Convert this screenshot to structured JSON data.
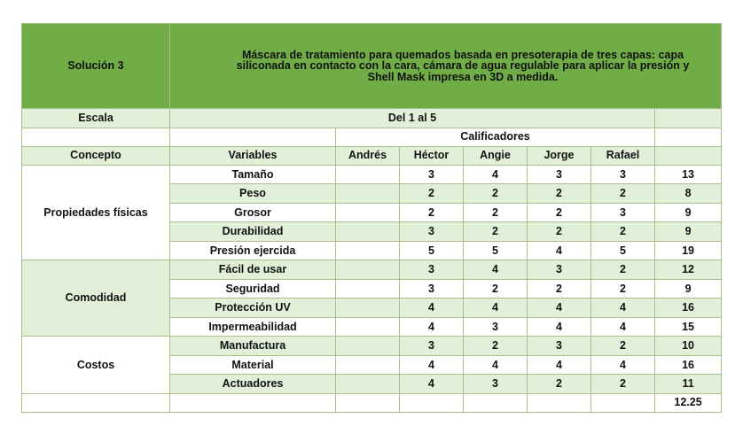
{
  "solution_label": "Solución 3",
  "title": "Máscara de tratamiento para quemados basada en presoterapia de tres capas: capa siliconada en contacto con la cara, cámara de agua regulable para aplicar la presión y Shell Mask impresa en 3D a medida.",
  "scale_label": "Escala",
  "scale_value": "Del 1 al 5",
  "graders_label": "Calificadores",
  "headers": {
    "concepto": "Concepto",
    "variables": "Variables",
    "graders": [
      "Andrés",
      "Héctor",
      "Angie",
      "Jorge",
      "Rafael"
    ]
  },
  "groups": [
    {
      "concept": "Propiedades físicas",
      "rows": [
        {
          "variable": "Tamaño",
          "scores": [
            "",
            "3",
            "4",
            "3",
            "3"
          ],
          "total": "13"
        },
        {
          "variable": "Peso",
          "scores": [
            "",
            "2",
            "2",
            "2",
            "2"
          ],
          "total": "8"
        },
        {
          "variable": "Grosor",
          "scores": [
            "",
            "2",
            "2",
            "2",
            "3"
          ],
          "total": "9"
        },
        {
          "variable": "Durabilidad",
          "scores": [
            "",
            "3",
            "2",
            "2",
            "2"
          ],
          "total": "9"
        },
        {
          "variable": "Presión ejercida",
          "scores": [
            "",
            "5",
            "5",
            "4",
            "5"
          ],
          "total": "19"
        }
      ]
    },
    {
      "concept": "Comodidad",
      "rows": [
        {
          "variable": "Fácil de usar",
          "scores": [
            "",
            "3",
            "4",
            "3",
            "2"
          ],
          "total": "12"
        },
        {
          "variable": "Seguridad",
          "scores": [
            "",
            "3",
            "2",
            "2",
            "2"
          ],
          "total": "9"
        },
        {
          "variable": "Protección UV",
          "scores": [
            "",
            "4",
            "4",
            "4",
            "4"
          ],
          "total": "16"
        },
        {
          "variable": "Impermeabilidad",
          "scores": [
            "",
            "4",
            "3",
            "4",
            "4"
          ],
          "total": "15"
        }
      ]
    },
    {
      "concept": "Costos",
      "rows": [
        {
          "variable": "Manufactura",
          "scores": [
            "",
            "3",
            "2",
            "3",
            "2"
          ],
          "total": "10"
        },
        {
          "variable": "Material",
          "scores": [
            "",
            "4",
            "4",
            "4",
            "4"
          ],
          "total": "16"
        },
        {
          "variable": "Actuadores",
          "scores": [
            "",
            "4",
            "3",
            "2",
            "2"
          ],
          "total": "11"
        }
      ]
    }
  ],
  "grand_total": "12.25",
  "colors": {
    "title_bg": "#70ad47",
    "band_bg": "#e2efd9",
    "border": "#a9c08a"
  }
}
